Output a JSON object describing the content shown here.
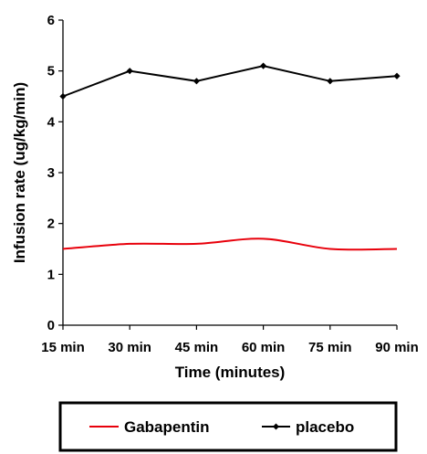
{
  "chart_data": {
    "type": "line",
    "categories": [
      "15 min",
      "30 min",
      "45 min",
      "60 min",
      "75 min",
      "90 min"
    ],
    "series": [
      {
        "name": "Gabapentin",
        "values": [
          1.5,
          1.6,
          1.6,
          1.7,
          1.5,
          1.5
        ],
        "color": "#e8000b",
        "marker": "none",
        "smooth": true
      },
      {
        "name": "placebo",
        "values": [
          4.5,
          5.0,
          4.8,
          5.1,
          4.8,
          4.9
        ],
        "color": "#000000",
        "marker": "diamond",
        "smooth": false
      }
    ],
    "title": "",
    "xlabel": "Time (minutes)",
    "ylabel": "Infusion rate (ug/kg/min)",
    "ylim": [
      0,
      6
    ],
    "yticks": [
      "0",
      "1",
      "2",
      "3",
      "4",
      "5",
      "6"
    ],
    "grid": false,
    "legend_position": "bottom"
  }
}
